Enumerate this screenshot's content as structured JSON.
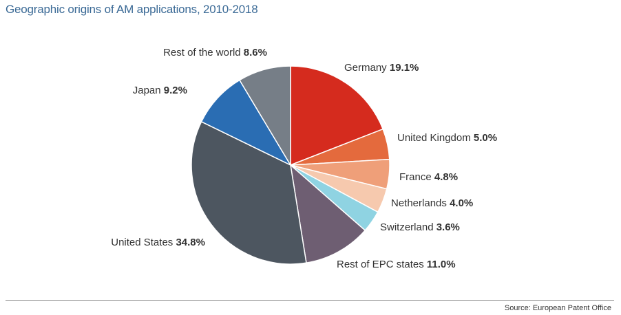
{
  "chart_data": {
    "type": "pie",
    "title": "Geographic origins of AM applications, 2010-2018",
    "source": "Source: European Patent Office",
    "slices": [
      {
        "name": "Germany",
        "value": 19.1,
        "label": "19.1%",
        "color": "#d52b1e"
      },
      {
        "name": "United Kingdom",
        "value": 5.0,
        "label": "5.0%",
        "color": "#e46a3d"
      },
      {
        "name": "France",
        "value": 4.8,
        "label": "4.8%",
        "color": "#ef9f79"
      },
      {
        "name": "Netherlands",
        "value": 4.0,
        "label": "4.0%",
        "color": "#f6c9ae"
      },
      {
        "name": "Switzerland",
        "value": 3.6,
        "label": "3.6%",
        "color": "#8fd3e2"
      },
      {
        "name": "Rest of EPC states",
        "value": 11.0,
        "label": "11.0%",
        "color": "#6e5e72"
      },
      {
        "name": "United States",
        "value": 34.8,
        "label": "34.8%",
        "color": "#4d5660"
      },
      {
        "name": "Japan",
        "value": 9.2,
        "label": "9.2%",
        "color": "#2a6db3"
      },
      {
        "name": "Rest of the world",
        "value": 8.6,
        "label": "8.6%",
        "color": "#767e87"
      }
    ]
  }
}
